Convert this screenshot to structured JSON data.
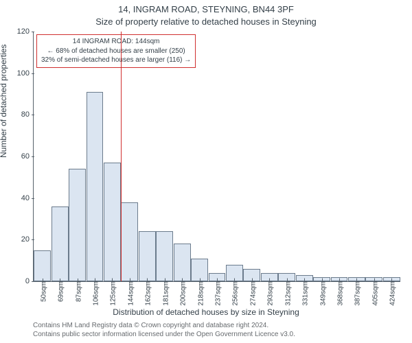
{
  "title_main": "14, INGRAM ROAD, STEYNING, BN44 3PF",
  "title_sub": "Size of property relative to detached houses in Steyning",
  "y_axis_label": "Number of detached properties",
  "x_axis_label": "Distribution of detached houses by size in Steyning",
  "attribution_line1": "Contains HM Land Registry data © Crown copyright and database right 2024.",
  "attribution_line2": "Contains public sector information licensed under the Open Government Licence v3.0.",
  "chart": {
    "type": "histogram",
    "ylim": [
      0,
      120
    ],
    "ytick_step": 20,
    "background_color": "#ffffff",
    "axis_color": "#55606a",
    "bar_fill": "#dbe5f1",
    "bar_border": "#6b7b8c",
    "marker_color": "#d02e2e",
    "marker_x_value": 144,
    "x_categories": [
      "50sqm",
      "69sqm",
      "87sqm",
      "106sqm",
      "125sqm",
      "144sqm",
      "162sqm",
      "181sqm",
      "200sqm",
      "218sqm",
      "237sqm",
      "256sqm",
      "274sqm",
      "293sqm",
      "312sqm",
      "331sqm",
      "349sqm",
      "368sqm",
      "387sqm",
      "405sqm",
      "424sqm"
    ],
    "values": [
      15,
      36,
      54,
      91,
      57,
      38,
      24,
      24,
      18,
      11,
      4,
      8,
      6,
      4,
      4,
      3,
      2,
      2,
      2,
      2,
      2
    ],
    "annotation": {
      "line1": "14 INGRAM ROAD: 144sqm",
      "line2": "← 68% of detached houses are smaller (250)",
      "line3": "32% of semi-detached houses are larger (116) →"
    }
  }
}
